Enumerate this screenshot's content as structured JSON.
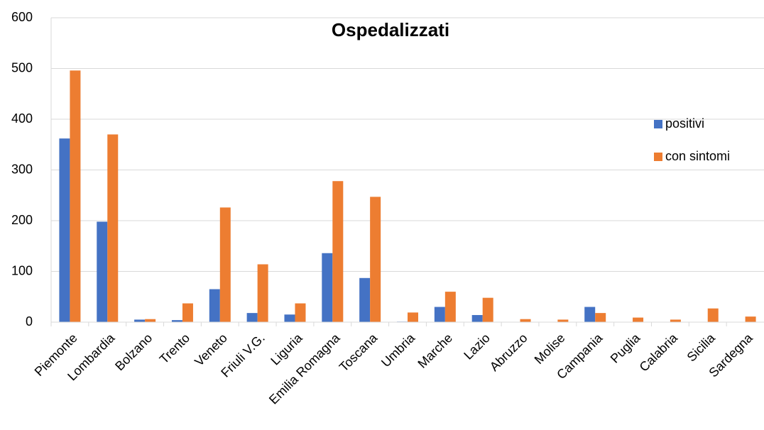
{
  "chart_data": {
    "type": "bar",
    "title": "Ospedalizzati",
    "categories": [
      "Piemonte",
      "Lombardia",
      "Bolzano",
      "Trento",
      "Veneto",
      "Friuli V.G.",
      "Liguria",
      "Emilia Romagna",
      "Toscana",
      "Umbria",
      "Marche",
      "Lazio",
      "Abruzzo",
      "Molise",
      "Campania",
      "Puglia",
      "Calabria",
      "Sicilia",
      "Sardegna"
    ],
    "series": [
      {
        "name": "positivi",
        "color": "#4472c4",
        "values": [
          362,
          198,
          5,
          4,
          65,
          18,
          15,
          136,
          87,
          1,
          30,
          14,
          0,
          0,
          30,
          0,
          0,
          0,
          0
        ]
      },
      {
        "name": "con sintomi",
        "color": "#ed7d31",
        "values": [
          496,
          370,
          6,
          37,
          226,
          114,
          37,
          278,
          247,
          19,
          60,
          48,
          6,
          5,
          18,
          9,
          5,
          27,
          11
        ]
      }
    ],
    "ylim": [
      0,
      600
    ],
    "yticks": [
      0,
      100,
      200,
      300,
      400,
      500,
      600
    ],
    "grid": true,
    "legend": "right"
  }
}
